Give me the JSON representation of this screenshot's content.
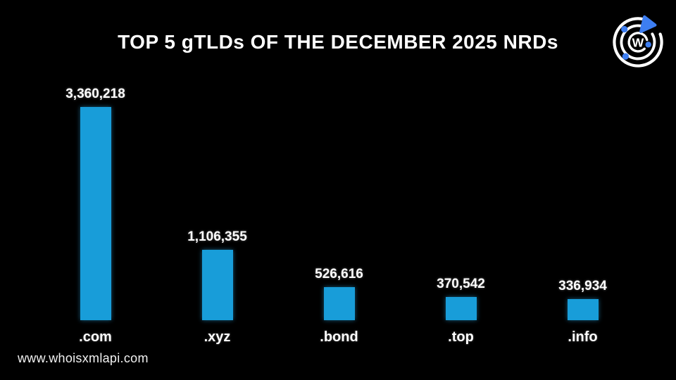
{
  "page": {
    "background_color": "#000000",
    "footer_url": "www.whoisxmlapi.com"
  },
  "logo": {
    "letter": "W",
    "ring_color": "#ffffff",
    "accent_color": "#3d7ef2"
  },
  "chart_data": {
    "type": "bar",
    "title": "TOP 5 gTLDs OF THE DECEMBER 2025 NRDs",
    "categories": [
      ".com",
      ".xyz",
      ".bond",
      ".top",
      ".info"
    ],
    "values": [
      3360218,
      1106355,
      526616,
      370542,
      336934
    ],
    "value_labels": [
      "3,360,218",
      "1,106,355",
      "526,616",
      "370,542",
      "336,934"
    ],
    "xlabel": "",
    "ylabel": "",
    "ylim": [
      0,
      3360218
    ],
    "grid": false,
    "legend": false,
    "bar_color": "#189dd9",
    "label_color": "#ffffff",
    "background_color": "#000000",
    "bar_value_position": "above",
    "orientation": "vertical"
  }
}
